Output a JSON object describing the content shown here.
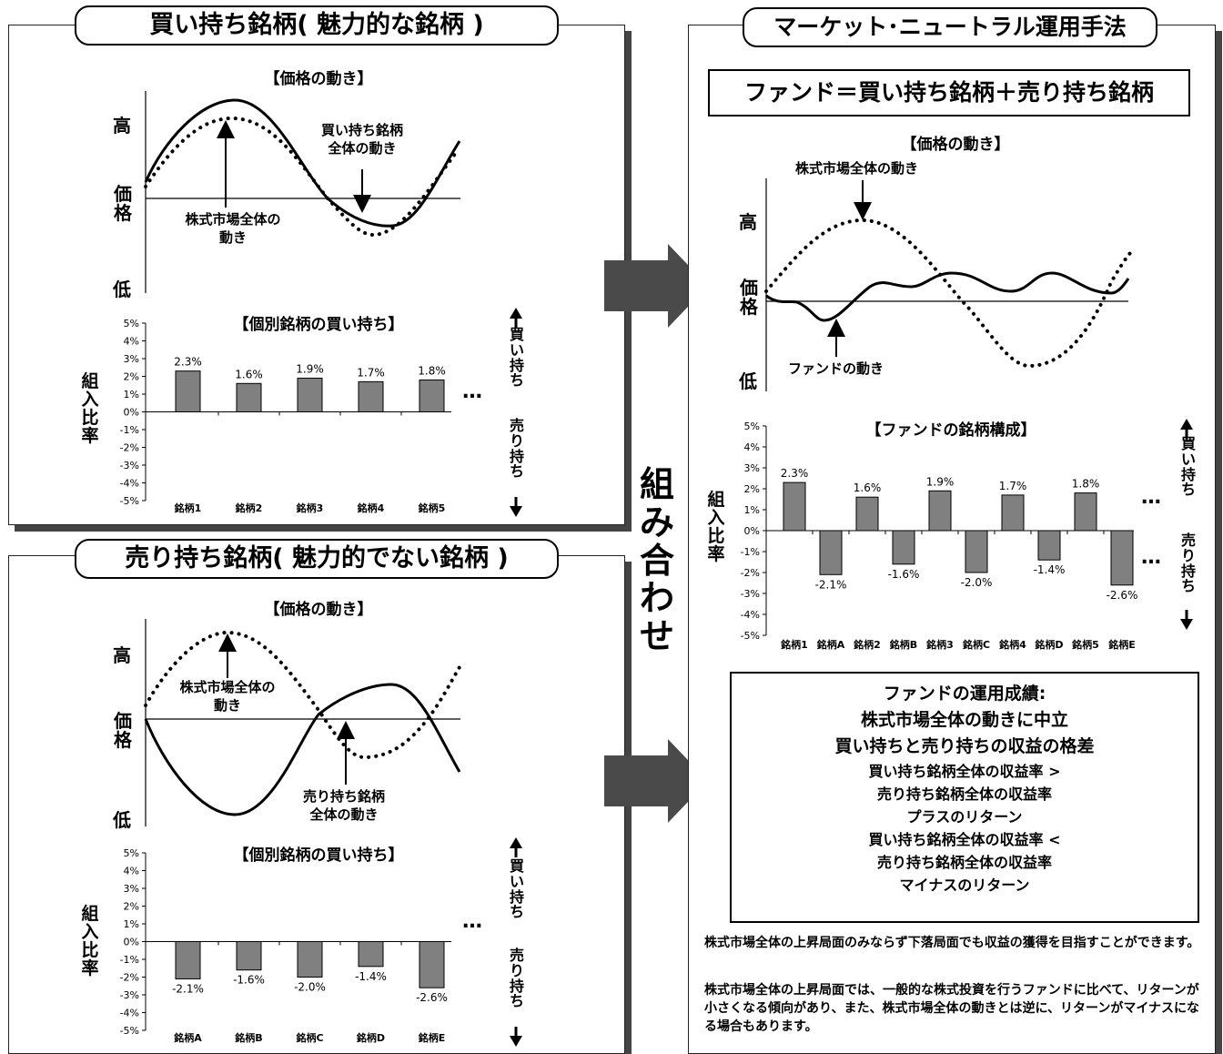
{
  "panel_buy": {
    "title": "買い持ち銘柄( 魅力的な銘柄 )",
    "price_title": "【価格の動き】",
    "axis_high": "高",
    "axis_price": "価格",
    "axis_low": "低",
    "ann_buy_group": "買い持ち銘柄\n全体の動き",
    "ann_market": "株式市場全体の\n動き",
    "holdings_title": "【個別銘柄の買い持ち】",
    "ylabel": "組入比率",
    "side_buy": "買い持ち",
    "side_sell": "売り持ち",
    "ellipsis": "…"
  },
  "panel_sell": {
    "title": "売り持ち銘柄( 魅力的でない銘柄 )",
    "price_title": "【価格の動き】",
    "axis_high": "高",
    "axis_price": "価格",
    "axis_low": "低",
    "ann_market": "株式市場全体の\n動き",
    "ann_sell_group": "売り持ち銘柄\n全体の動き",
    "holdings_title": "【個別銘柄の買い持ち】",
    "ylabel": "組入比率",
    "side_buy": "買い持ち",
    "side_sell": "売り持ち",
    "ellipsis": "…"
  },
  "combine_label": "組み合わせ",
  "panel_mn": {
    "title": "マーケット･ニュートラル運用手法",
    "formula": "ファンド＝買い持ち銘柄＋売り持ち銘柄",
    "price_title": "【価格の動き】",
    "ann_market": "株式市場全体の動き",
    "ann_fund": "ファンドの動き",
    "axis_high": "高",
    "axis_price": "価格",
    "axis_low": "低",
    "composition_title": "【ファンドの銘柄構成】",
    "ylabel": "組入比率",
    "side_buy": "買い持ち",
    "side_sell": "売り持ち",
    "ellipsis": "…",
    "perf_lines": [
      "ファンドの運用成績:",
      "株式市場全体の動きに中立",
      "買い持ちと売り持ちの収益の格差",
      "買い持ち銘柄全体の収益率 >",
      "売り持ち銘柄全体の収益率",
      "プラスのリターン",
      "買い持ち銘柄全体の収益率 <",
      "売り持ち銘柄全体の収益率",
      "マイナスのリターン"
    ],
    "note1": "株式市場全体の上昇局面のみならず下落局面でも収益の獲得を目指すことができます。",
    "note2": "株式市場全体の上昇局面では、一般的な株式投資を行うファンドに比べて、リターンが小さくなる傾向があり、また、株式市場全体の動きとは逆に、リターンがマイナスになる場合もあります。"
  },
  "chart_data": [
    {
      "type": "bar",
      "title": "【個別銘柄の買い持ち】",
      "categories": [
        "銘柄1",
        "銘柄2",
        "銘柄3",
        "銘柄4",
        "銘柄5"
      ],
      "values": [
        2.3,
        1.6,
        1.9,
        1.7,
        1.8
      ],
      "value_labels": [
        "2.3%",
        "1.6%",
        "1.9%",
        "1.7%",
        "1.8%"
      ],
      "yticks": [
        "5%",
        "4%",
        "3%",
        "2%",
        "1%",
        "0%",
        "-1%",
        "-2%",
        "-3%",
        "-4%",
        "-5%"
      ],
      "ylim": [
        -5,
        5
      ],
      "ylabel": "組入比率",
      "bar_color": "#808080"
    },
    {
      "type": "bar",
      "title": "【個別銘柄の買い持ち】",
      "categories": [
        "銘柄A",
        "銘柄B",
        "銘柄C",
        "銘柄D",
        "銘柄E"
      ],
      "values": [
        -2.1,
        -1.6,
        -2.0,
        -1.4,
        -2.6
      ],
      "value_labels": [
        "-2.1%",
        "-1.6%",
        "-2.0%",
        "-1.4%",
        "-2.6%"
      ],
      "yticks": [
        "5%",
        "4%",
        "3%",
        "2%",
        "1%",
        "0%",
        "-1%",
        "-2%",
        "-3%",
        "-4%",
        "-5%"
      ],
      "ylim": [
        -5,
        5
      ],
      "ylabel": "組入比率",
      "bar_color": "#808080"
    },
    {
      "type": "bar",
      "title": "【ファンドの銘柄構成】",
      "categories": [
        "銘柄1",
        "銘柄A",
        "銘柄2",
        "銘柄B",
        "銘柄3",
        "銘柄C",
        "銘柄4",
        "銘柄D",
        "銘柄5",
        "銘柄E"
      ],
      "values": [
        2.3,
        -2.1,
        1.6,
        -1.6,
        1.9,
        -2.0,
        1.7,
        -1.4,
        1.8,
        -2.6
      ],
      "value_labels": [
        "2.3%",
        "-2.1%",
        "1.6%",
        "-1.6%",
        "1.9%",
        "-2.0%",
        "1.7%",
        "-1.4%",
        "1.8%",
        "-2.6%"
      ],
      "yticks": [
        "5%",
        "4%",
        "3%",
        "2%",
        "1%",
        "0%",
        "-1%",
        "-2%",
        "-3%",
        "-4%",
        "-5%"
      ],
      "ylim": [
        -5,
        5
      ],
      "ylabel": "組入比率",
      "bar_color": "#808080"
    }
  ]
}
